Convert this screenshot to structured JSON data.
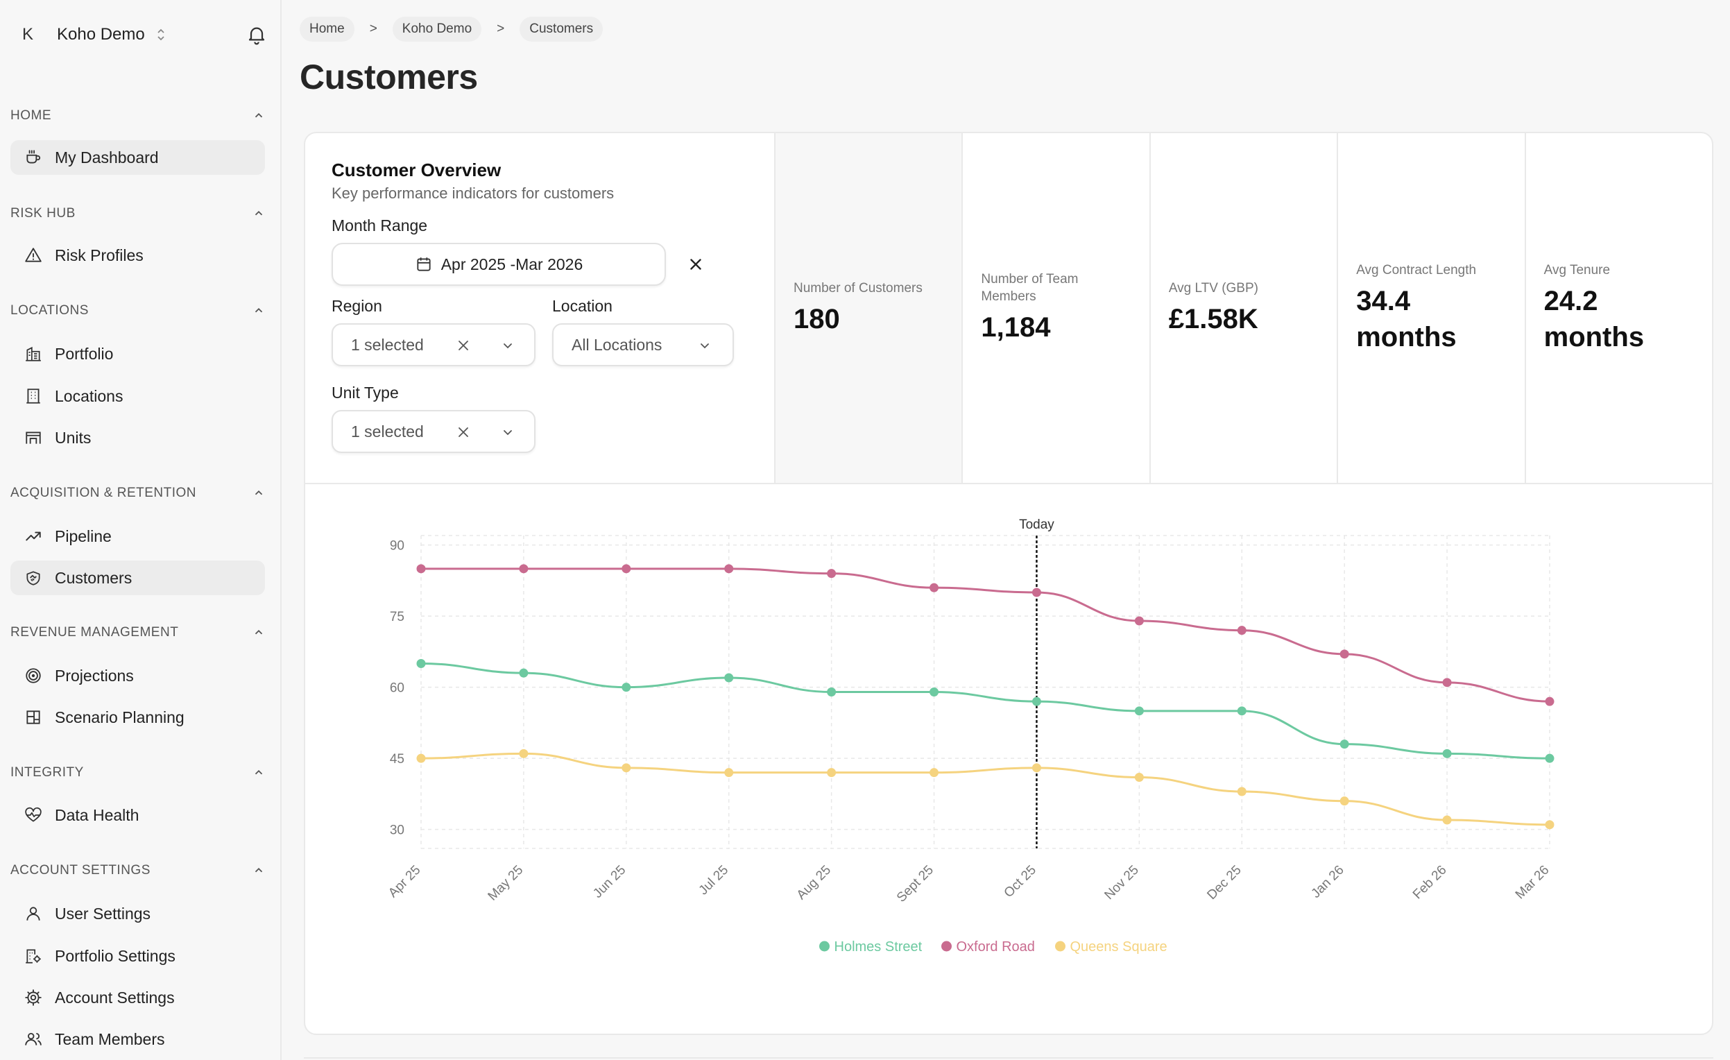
{
  "workspace": {
    "initial": "K",
    "name": "Koho Demo"
  },
  "sidebar": {
    "sections": [
      {
        "title": "HOME",
        "items": [
          {
            "label": "My Dashboard"
          }
        ]
      },
      {
        "title": "RISK HUB",
        "items": [
          {
            "label": "Risk Profiles"
          }
        ]
      },
      {
        "title": "LOCATIONS",
        "items": [
          {
            "label": "Portfolio"
          },
          {
            "label": "Locations"
          },
          {
            "label": "Units"
          }
        ]
      },
      {
        "title": "ACQUISITION & RETENTION",
        "items": [
          {
            "label": "Pipeline"
          },
          {
            "label": "Customers"
          }
        ]
      },
      {
        "title": "REVENUE MANAGEMENT",
        "items": [
          {
            "label": "Projections"
          },
          {
            "label": "Scenario Planning"
          }
        ]
      },
      {
        "title": "INTEGRITY",
        "items": [
          {
            "label": "Data Health"
          }
        ]
      },
      {
        "title": "ACCOUNT SETTINGS",
        "items": [
          {
            "label": "User Settings"
          },
          {
            "label": "Portfolio Settings"
          },
          {
            "label": "Account Settings"
          },
          {
            "label": "Team Members"
          }
        ]
      }
    ]
  },
  "breadcrumb": {
    "items": [
      "Home",
      "Koho Demo",
      "Customers"
    ],
    "separator": ">"
  },
  "page": {
    "title": "Customers"
  },
  "overview": {
    "title": "Customer Overview",
    "subtitle": "Key performance indicators for customers",
    "month_range_label": "Month Range",
    "month_range_value": "Apr 2025 -Mar 2026",
    "region_label": "Region",
    "region_value": "1 selected",
    "location_label": "Location",
    "location_value": "All Locations",
    "unit_type_label": "Unit Type",
    "unit_type_value": "1 selected"
  },
  "kpis": [
    {
      "label": "Number of Customers",
      "value": "180"
    },
    {
      "label": "Number of Team Members",
      "value": "1,184"
    },
    {
      "label": "Avg LTV (GBP)",
      "value": "£1.58K"
    },
    {
      "label": "Avg Contract Length",
      "value": "34.4 months"
    },
    {
      "label": "Avg Tenure",
      "value": "24.2 months"
    }
  ],
  "chart_data": {
    "type": "line",
    "categories": [
      "Apr 25",
      "May 25",
      "Jun 25",
      "Jul 25",
      "Aug 25",
      "Sept 25",
      "Oct 25",
      "Nov 25",
      "Dec 25",
      "Jan 26",
      "Feb 26",
      "Mar 26"
    ],
    "series": [
      {
        "name": "Holmes Street",
        "color": "#6cc9a0",
        "values": [
          65,
          63,
          60,
          62,
          59,
          59,
          57,
          55,
          55,
          48,
          46,
          45
        ]
      },
      {
        "name": "Oxford Road",
        "color": "#c96b8f",
        "values": [
          85,
          85,
          85,
          85,
          84,
          81,
          80,
          74,
          72,
          67,
          61,
          57
        ]
      },
      {
        "name": "Queens Square",
        "color": "#f5d37f",
        "values": [
          45,
          46,
          43,
          42,
          42,
          42,
          43,
          41,
          38,
          36,
          32,
          31
        ]
      }
    ],
    "yticks": [
      90,
      75,
      60,
      45,
      30
    ],
    "ylim": [
      26,
      92
    ],
    "marker": {
      "category": "Oct 25",
      "label": "Today"
    },
    "legend": "bottom-center",
    "grid": true
  }
}
